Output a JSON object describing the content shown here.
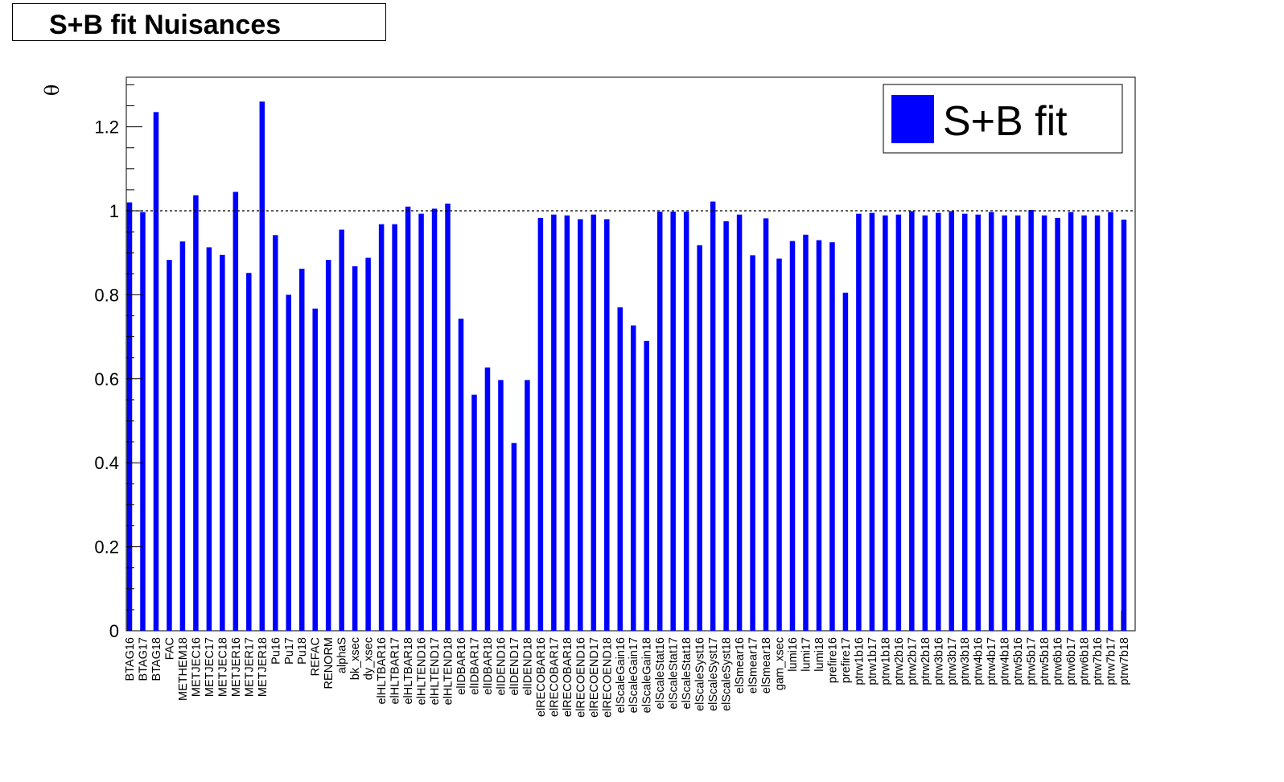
{
  "chart_data": {
    "type": "bar",
    "title": "S+B fit Nuisances",
    "ylabel": "θ",
    "xlabel": "",
    "ylim": [
      0,
      1.3
    ],
    "reference_line": 1,
    "grid": false,
    "legend": {
      "placement": "top-right",
      "entries": [
        {
          "label": "S+B fit",
          "color": "#0000ff"
        }
      ]
    },
    "yticks": [
      "0",
      "0.2",
      "0.4",
      "0.6",
      "0.8",
      "1",
      "1.2"
    ],
    "series": [
      {
        "name": "S+B fit",
        "color": "#0000ff"
      }
    ],
    "categories": [
      "BTAG16",
      "BTAG17",
      "BTAG18",
      "FAC",
      "METHEM18",
      "METJEC16",
      "METJEC17",
      "METJEC18",
      "METJER16",
      "METJER17",
      "METJER18",
      "Pu16",
      "Pu17",
      "Pu18",
      "REFAC",
      "RENORM",
      "alphaS",
      "bk_xsec",
      "dy_xsec",
      "elHLTBAR16",
      "elHLTBAR17",
      "elHLTBAR18",
      "elHLTEND16",
      "elHLTEND17",
      "elHLTEND18",
      "elIDBAR16",
      "elIDBAR17",
      "elIDBAR18",
      "elIDEND16",
      "elIDEND17",
      "elIDEND18",
      "elRECOBAR16",
      "elRECOBAR17",
      "elRECOBAR18",
      "elRECOEND16",
      "elRECOEND17",
      "elRECOEND18",
      "elScaleGain16",
      "elScaleGain17",
      "elScaleGain18",
      "elScaleStat16",
      "elScaleStat17",
      "elScaleStat18",
      "elScaleSyst16",
      "elScaleSyst17",
      "elScaleSyst18",
      "elSmear16",
      "elSmear17",
      "elSmear18",
      "gam_xsec",
      "lumi16",
      "lumi17",
      "lumi18",
      "prefire16",
      "prefire17",
      "ptrw1b16",
      "ptrw1b17",
      "ptrw1b18",
      "ptrw2b16",
      "ptrw2b17",
      "ptrw2b18",
      "ptrw3b16",
      "ptrw3b17",
      "ptrw3b18",
      "ptrw4b16",
      "ptrw4b17",
      "ptrw4b18",
      "ptrw5b16",
      "ptrw5b17",
      "ptrw5b18",
      "ptrw6b16",
      "ptrw6b17",
      "ptrw6b18",
      "ptrw7b16",
      "ptrw7b17",
      "ptrw7b18"
    ],
    "values": [
      1.02,
      0.997,
      1.235,
      0.883,
      0.927,
      1.037,
      0.913,
      0.895,
      1.045,
      0.852,
      1.26,
      0.942,
      0.8,
      0.862,
      0.767,
      0.883,
      0.955,
      0.868,
      0.888,
      0.968,
      0.968,
      1.01,
      0.993,
      1.005,
      1.017,
      0.743,
      0.562,
      0.627,
      0.597,
      0.447,
      0.597,
      0.983,
      0.991,
      0.989,
      0.98,
      0.991,
      0.98,
      0.77,
      0.727,
      0.69,
      0.998,
      0.998,
      0.998,
      0.918,
      1.022,
      0.975,
      0.991,
      0.894,
      0.982,
      0.886,
      0.928,
      0.943,
      0.93,
      0.925,
      0.805,
      0.993,
      0.995,
      0.989,
      0.991,
      0.999,
      0.989,
      0.995,
      0.999,
      0.993,
      0.991,
      0.997,
      0.989,
      0.989,
      1.002,
      0.989,
      0.983,
      0.997,
      0.989,
      0.989,
      0.997,
      0.979
    ]
  }
}
